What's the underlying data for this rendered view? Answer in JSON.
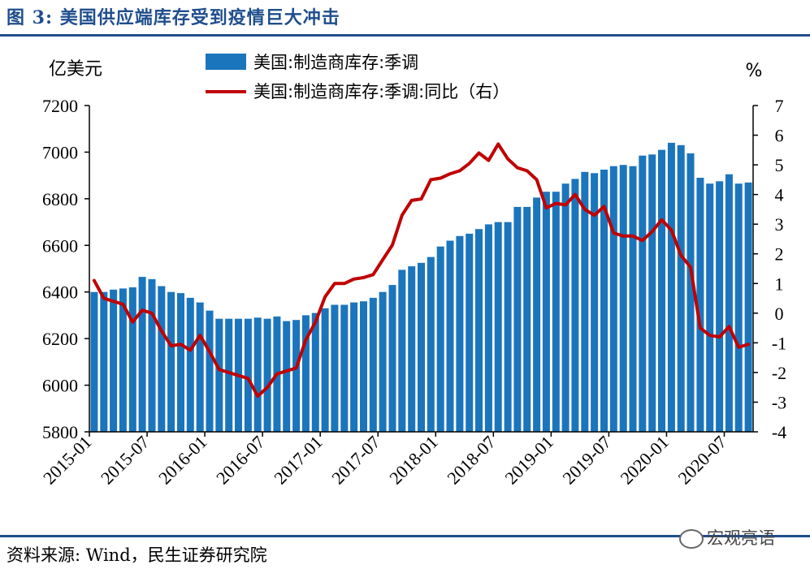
{
  "header": {
    "title": "图 3:  美国供应端库存受到疫情巨大冲击"
  },
  "footer": {
    "source": "资料来源: Wind，民生证券研究院",
    "watermark": "宏观亮语"
  },
  "colors": {
    "bar": "#1B75BC",
    "line": "#C00000",
    "rule": "#1F4E8C"
  },
  "chart_data": {
    "type": "bar",
    "title": "",
    "left_unit": "亿美元",
    "right_unit": "%",
    "legend_placement": "top",
    "grid": false,
    "ylim": [
      5800,
      7200
    ],
    "y_ticks": [
      5800,
      6000,
      6200,
      6400,
      6600,
      6800,
      7000,
      7200
    ],
    "y2lim": [
      -4,
      7
    ],
    "y2_ticks": [
      -4,
      -3,
      -2,
      -1,
      0,
      1,
      2,
      3,
      4,
      5,
      6,
      7
    ],
    "x_tick_labels": [
      "2015-01",
      "2015-07",
      "2016-01",
      "2016-07",
      "2017-01",
      "2017-07",
      "2018-01",
      "2018-07",
      "2019-01",
      "2019-07",
      "2020-01",
      "2020-07"
    ],
    "categories": [
      "2015-01",
      "2015-02",
      "2015-03",
      "2015-04",
      "2015-05",
      "2015-06",
      "2015-07",
      "2015-08",
      "2015-09",
      "2015-10",
      "2015-11",
      "2015-12",
      "2016-01",
      "2016-02",
      "2016-03",
      "2016-04",
      "2016-05",
      "2016-06",
      "2016-07",
      "2016-08",
      "2016-09",
      "2016-10",
      "2016-11",
      "2016-12",
      "2017-01",
      "2017-02",
      "2017-03",
      "2017-04",
      "2017-05",
      "2017-06",
      "2017-07",
      "2017-08",
      "2017-09",
      "2017-10",
      "2017-11",
      "2017-12",
      "2018-01",
      "2018-02",
      "2018-03",
      "2018-04",
      "2018-05",
      "2018-06",
      "2018-07",
      "2018-08",
      "2018-09",
      "2018-10",
      "2018-11",
      "2018-12",
      "2019-01",
      "2019-02",
      "2019-03",
      "2019-04",
      "2019-05",
      "2019-06",
      "2019-07",
      "2019-08",
      "2019-09",
      "2019-10",
      "2019-11",
      "2019-12",
      "2020-01",
      "2020-02",
      "2020-03",
      "2020-04",
      "2020-05",
      "2020-06",
      "2020-07",
      "2020-08",
      "2020-09"
    ],
    "series": [
      {
        "name": "美国:制造商库存:季调",
        "type": "bar",
        "axis": "left",
        "values": [
          6400,
          6400,
          6410,
          6415,
          6420,
          6465,
          6455,
          6425,
          6400,
          6395,
          6375,
          6355,
          6320,
          6285,
          6285,
          6285,
          6285,
          6290,
          6285,
          6295,
          6275,
          6280,
          6300,
          6310,
          6330,
          6345,
          6345,
          6355,
          6360,
          6375,
          6400,
          6430,
          6495,
          6510,
          6525,
          6550,
          6595,
          6620,
          6640,
          6650,
          6670,
          6690,
          6700,
          6700,
          6765,
          6765,
          6805,
          6830,
          6830,
          6865,
          6885,
          6915,
          6910,
          6925,
          6940,
          6945,
          6940,
          6985,
          6990,
          7010,
          7040,
          7030,
          6995,
          6890,
          6865,
          6875,
          6905,
          6865,
          6870
        ]
      },
      {
        "name": "美国:制造商库存:季调:同比（右）",
        "type": "line",
        "axis": "right",
        "values": [
          1.1,
          0.5,
          0.4,
          0.3,
          -0.3,
          0.1,
          0.0,
          -0.6,
          -1.1,
          -1.05,
          -1.25,
          -0.75,
          -1.3,
          -1.9,
          -2.0,
          -2.1,
          -2.2,
          -2.8,
          -2.5,
          -2.05,
          -1.95,
          -1.85,
          -0.9,
          -0.3,
          0.55,
          1.0,
          1.0,
          1.15,
          1.2,
          1.3,
          1.8,
          2.3,
          3.3,
          3.8,
          3.85,
          4.5,
          4.55,
          4.7,
          4.8,
          5.05,
          5.4,
          5.15,
          5.7,
          5.2,
          4.9,
          4.8,
          4.5,
          3.55,
          3.7,
          3.65,
          4.0,
          3.5,
          3.3,
          3.6,
          2.7,
          2.6,
          2.6,
          2.45,
          2.75,
          3.15,
          2.8,
          1.95,
          1.55,
          -0.5,
          -0.75,
          -0.8,
          -0.45,
          -1.15,
          -1.05
        ]
      }
    ]
  }
}
